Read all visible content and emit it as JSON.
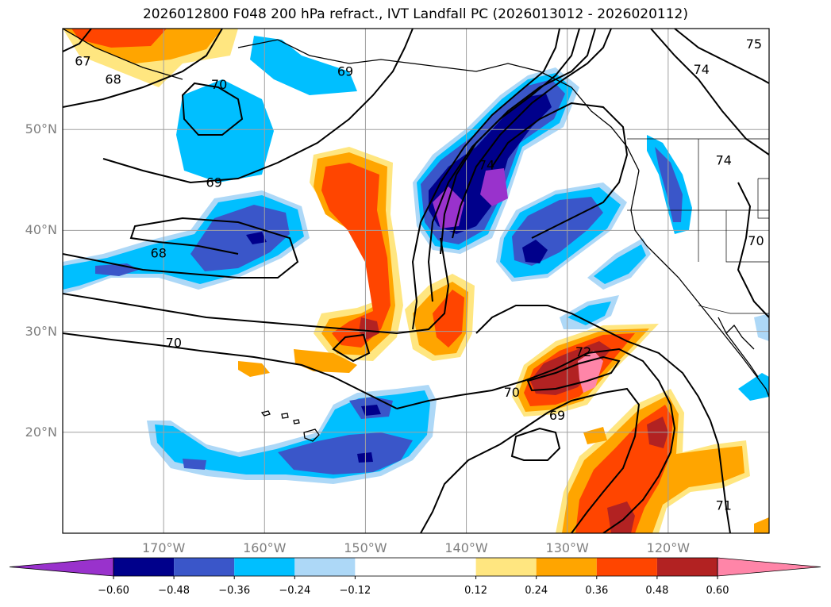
{
  "chart_data": {
    "type": "heatmap",
    "title": "2026012800 F048 200 hPa refract., IVT Landfall PC (2026013012 - 2026020112)",
    "xlim": [
      -180,
      -110
    ],
    "ylim": [
      10,
      60
    ],
    "x_ticks": [
      -170,
      -160,
      -150,
      -140,
      -130,
      -120
    ],
    "x_tick_labels": [
      "170°W",
      "160°W",
      "150°W",
      "140°W",
      "130°W",
      "120°W"
    ],
    "y_ticks": [
      20,
      30,
      40,
      50
    ],
    "y_tick_labels": [
      "20°N",
      "30°N",
      "40°N",
      "50°N"
    ],
    "grid": true,
    "colorbar": {
      "levels": [
        -0.6,
        -0.48,
        -0.36,
        -0.24,
        -0.12,
        0.12,
        0.24,
        0.36,
        0.48,
        0.6
      ],
      "tick_labels": [
        "−0.60",
        "−0.48",
        "−0.36",
        "−0.24",
        "−0.12",
        "0.12",
        "0.24",
        "0.36",
        "0.48",
        "0.60"
      ],
      "colors": [
        "#9932cc",
        "#00008b",
        "#3a56c9",
        "#00bfff",
        "#add8f7",
        "#ffffff",
        "#ffe680",
        "#ffa500",
        "#ff4500",
        "#b22222",
        "#ff85a8"
      ],
      "extend": "both"
    },
    "contour_labels": [
      {
        "text": "67",
        "lon": -178,
        "lat": 56.8
      },
      {
        "text": "68",
        "lon": -175,
        "lat": 55.0
      },
      {
        "text": "70",
        "lon": -164.5,
        "lat": 54.5
      },
      {
        "text": "69",
        "lon": -165,
        "lat": 44.8
      },
      {
        "text": "68",
        "lon": -170.5,
        "lat": 37.8
      },
      {
        "text": "70",
        "lon": -169,
        "lat": 28.9
      },
      {
        "text": "69",
        "lon": -152,
        "lat": 55.8
      },
      {
        "text": "74",
        "lon": -138,
        "lat": 46.5
      },
      {
        "text": "74",
        "lon": -116.7,
        "lat": 56.0
      },
      {
        "text": "74",
        "lon": -114.5,
        "lat": 47.0
      },
      {
        "text": "75",
        "lon": -111.5,
        "lat": 58.5
      },
      {
        "text": "70",
        "lon": -111.3,
        "lat": 39.0
      },
      {
        "text": "72",
        "lon": -128.4,
        "lat": 28.0
      },
      {
        "text": "70",
        "lon": -135.5,
        "lat": 24.0
      },
      {
        "text": "69",
        "lon": -131,
        "lat": 21.7
      },
      {
        "text": "71",
        "lon": -114.5,
        "lat": 12.8
      }
    ]
  }
}
